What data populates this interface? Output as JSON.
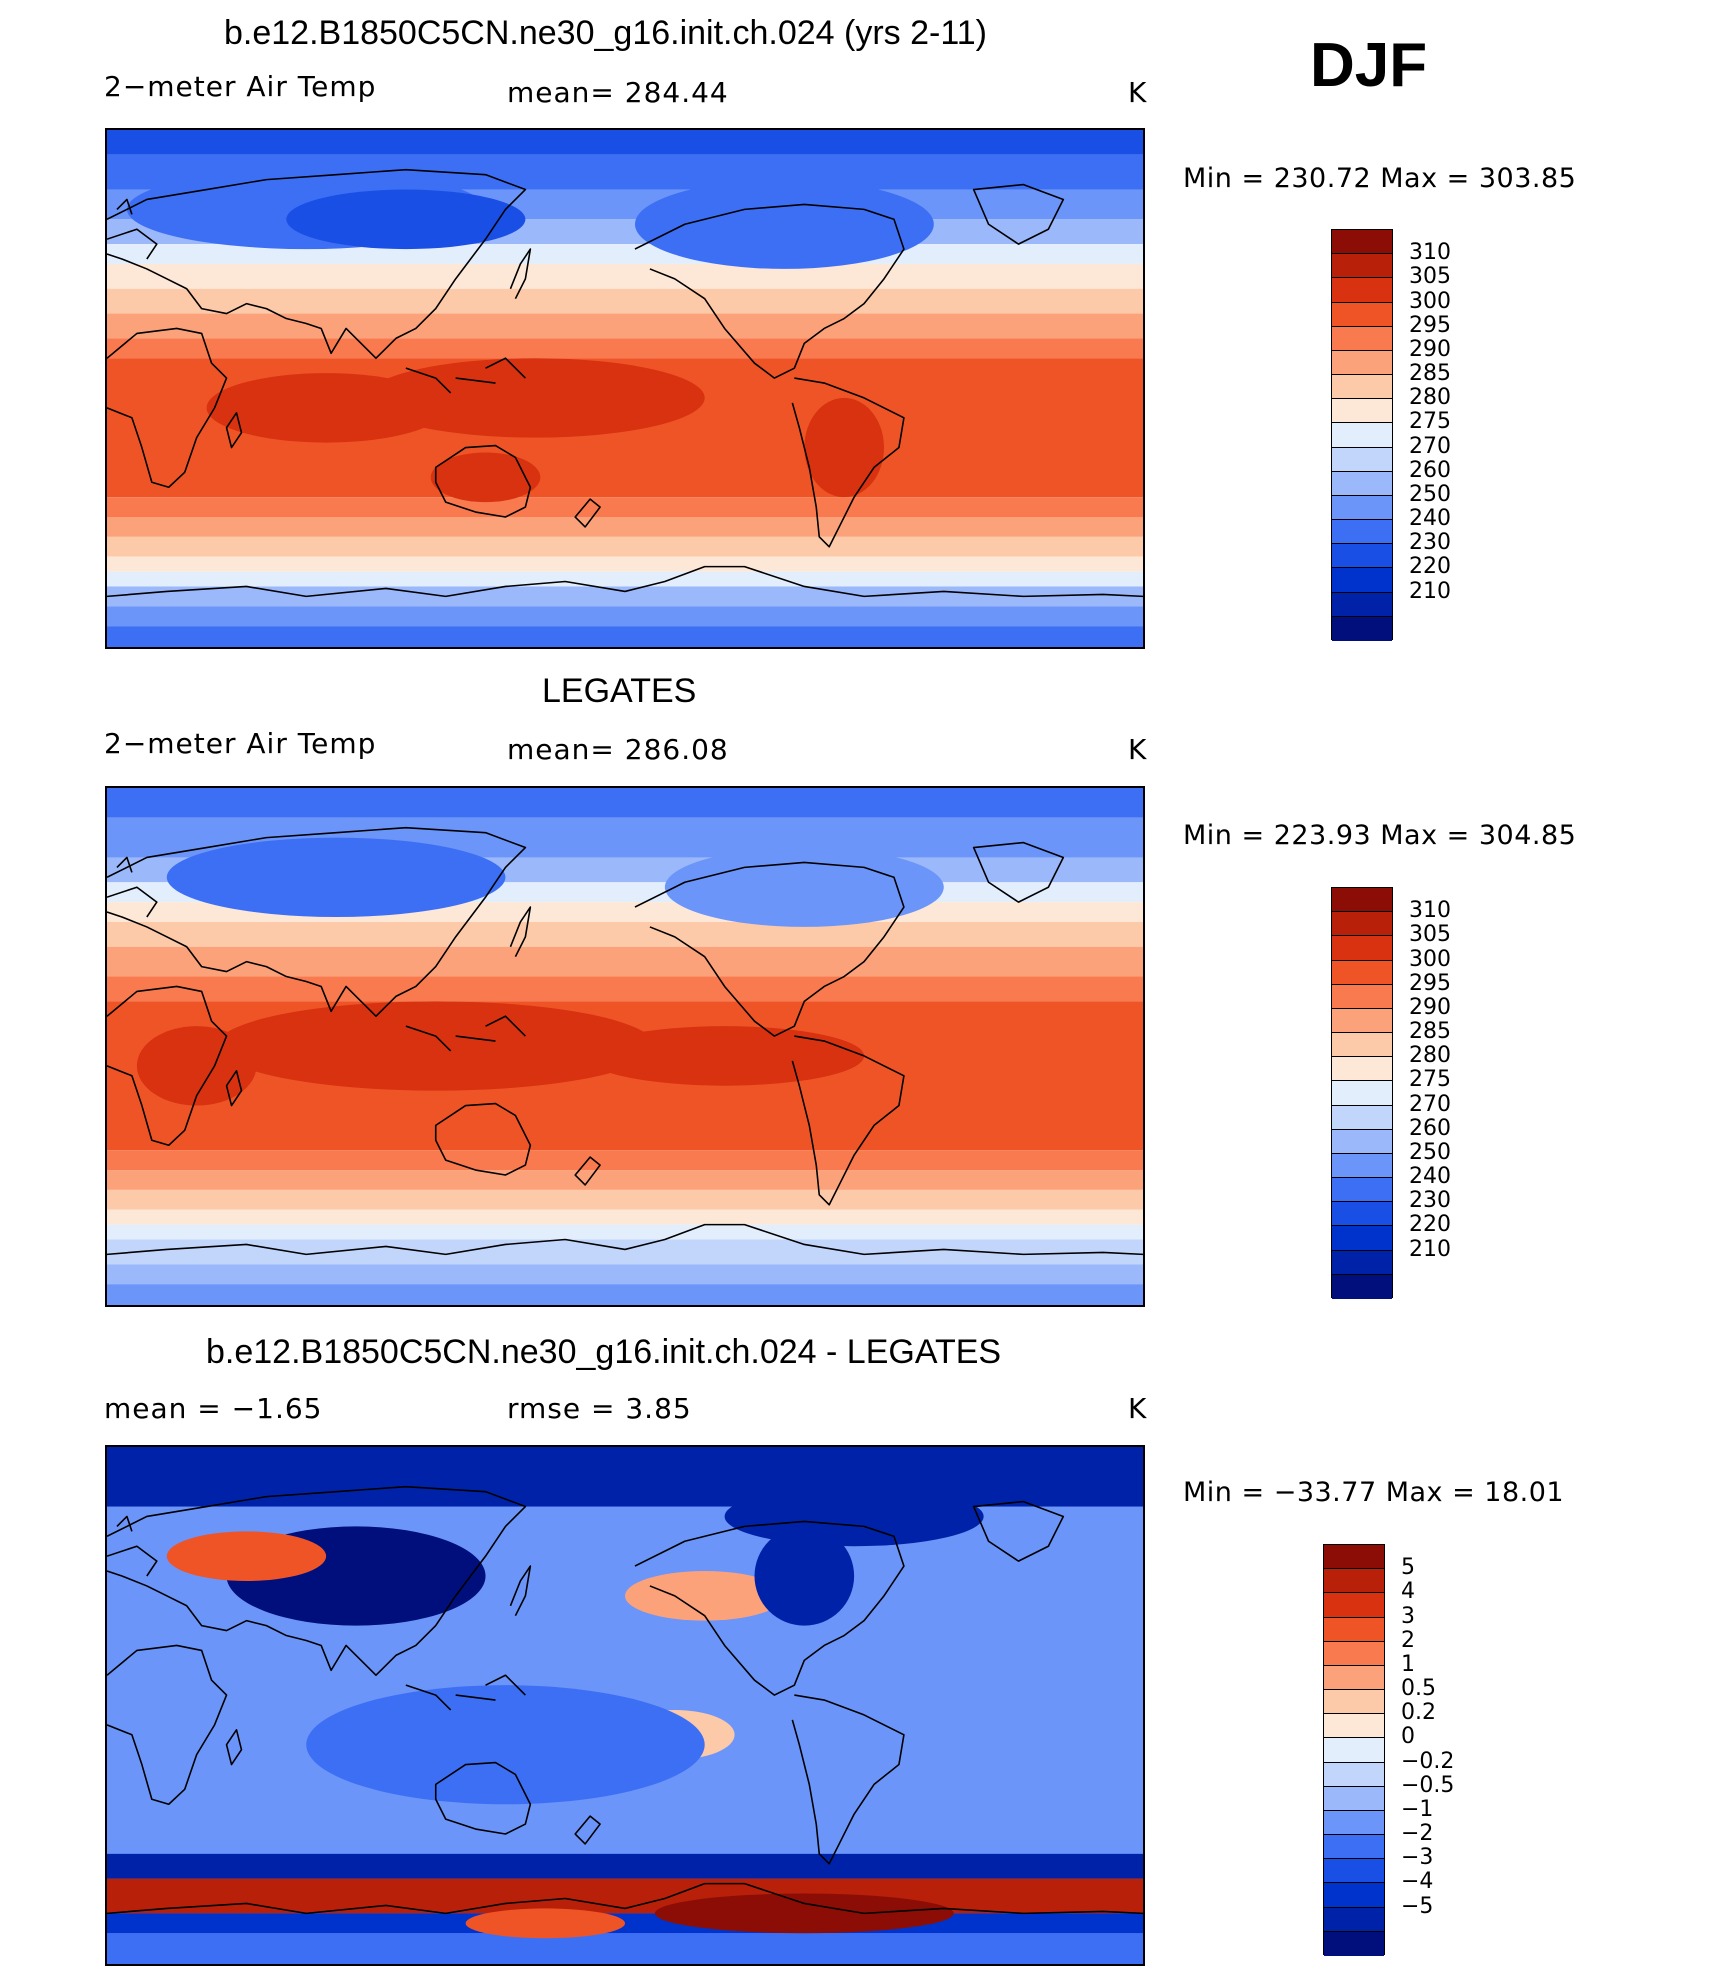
{
  "season": "DJF",
  "colors": {
    "abs_scale": [
      "#000f7c",
      "#0022a8",
      "#0033cc",
      "#1a4fe6",
      "#3d6ff5",
      "#6b95f9",
      "#9bb8fb",
      "#c2d6fc",
      "#e3eefd",
      "#fde8d8",
      "#fccaa8",
      "#fba27b",
      "#f87a4e",
      "#ef5426",
      "#d83210",
      "#b8200a",
      "#8c0d05"
    ],
    "diff_scale": [
      "#000f7c",
      "#0022a8",
      "#0033cc",
      "#1a4fe6",
      "#3d6ff5",
      "#6b95f9",
      "#9bb8fb",
      "#c2d6fc",
      "#e3eefd",
      "#fde8d8",
      "#fccaa8",
      "#fba27b",
      "#f87a4e",
      "#ef5426",
      "#d83210",
      "#b8200a",
      "#8c0d05"
    ]
  },
  "panels": [
    {
      "title": "b.e12.B1850C5CN.ne30_g16.init.ch.024 (yrs 2-11)",
      "left": "2−meter Air Temp",
      "center": "mean=  284.44",
      "right": "K",
      "minmax": "Min  =  230.72  Max  =  303.85",
      "cbar_labels": [
        "310",
        "305",
        "300",
        "295",
        "290",
        "285",
        "280",
        "275",
        "270",
        "260",
        "250",
        "240",
        "230",
        "220",
        "210"
      ]
    },
    {
      "title": "LEGATES",
      "left": "2−meter Air Temp",
      "center": "mean=  286.08",
      "right": "K",
      "minmax": "Min  =  223.93  Max  =  304.85",
      "cbar_labels": [
        "310",
        "305",
        "300",
        "295",
        "290",
        "285",
        "280",
        "275",
        "270",
        "260",
        "250",
        "240",
        "230",
        "220",
        "210"
      ]
    },
    {
      "title": "b.e12.B1850C5CN.ne30_g16.init.ch.024 - LEGATES",
      "left": "mean  =    −1.65",
      "center": "rmse  =      3.85",
      "right": "K",
      "minmax": "Min  =  −33.77  Max  =     18.01",
      "cbar_labels": [
        "5",
        "4",
        "3",
        "2",
        "1",
        "0.5",
        "0.2",
        "0",
        "−0.2",
        "−0.5",
        "−1",
        "−2",
        "−3",
        "−4",
        "−5"
      ]
    }
  ],
  "chart_data": [
    {
      "type": "heatmap",
      "title": "b.e12.B1850C5CN.ne30_g16.init.ch.024 (yrs 2-11)",
      "subtitle": "2−meter Air Temp",
      "units": "K",
      "mean": 284.44,
      "min": 230.72,
      "max": 303.85,
      "contour_levels": [
        210,
        220,
        230,
        240,
        250,
        260,
        270,
        275,
        280,
        285,
        290,
        295,
        300,
        305,
        310
      ],
      "projection": "cylindrical equidistant, Pacific-centered",
      "season": "DJF"
    },
    {
      "type": "heatmap",
      "title": "LEGATES",
      "subtitle": "2−meter Air Temp",
      "units": "K",
      "mean": 286.08,
      "min": 223.93,
      "max": 304.85,
      "contour_levels": [
        210,
        220,
        230,
        240,
        250,
        260,
        270,
        275,
        280,
        285,
        290,
        295,
        300,
        305,
        310
      ],
      "projection": "cylindrical equidistant, Pacific-centered",
      "season": "DJF"
    },
    {
      "type": "heatmap",
      "title": "b.e12.B1850C5CN.ne30_g16.init.ch.024 - LEGATES",
      "units": "K",
      "mean": -1.65,
      "rmse": 3.85,
      "min": -33.77,
      "max": 18.01,
      "contour_levels": [
        -5,
        -4,
        -3,
        -2,
        -1,
        -0.5,
        -0.2,
        0,
        0.2,
        0.5,
        1,
        2,
        3,
        4,
        5
      ],
      "projection": "cylindrical equidistant, Pacific-centered",
      "season": "DJF"
    }
  ]
}
